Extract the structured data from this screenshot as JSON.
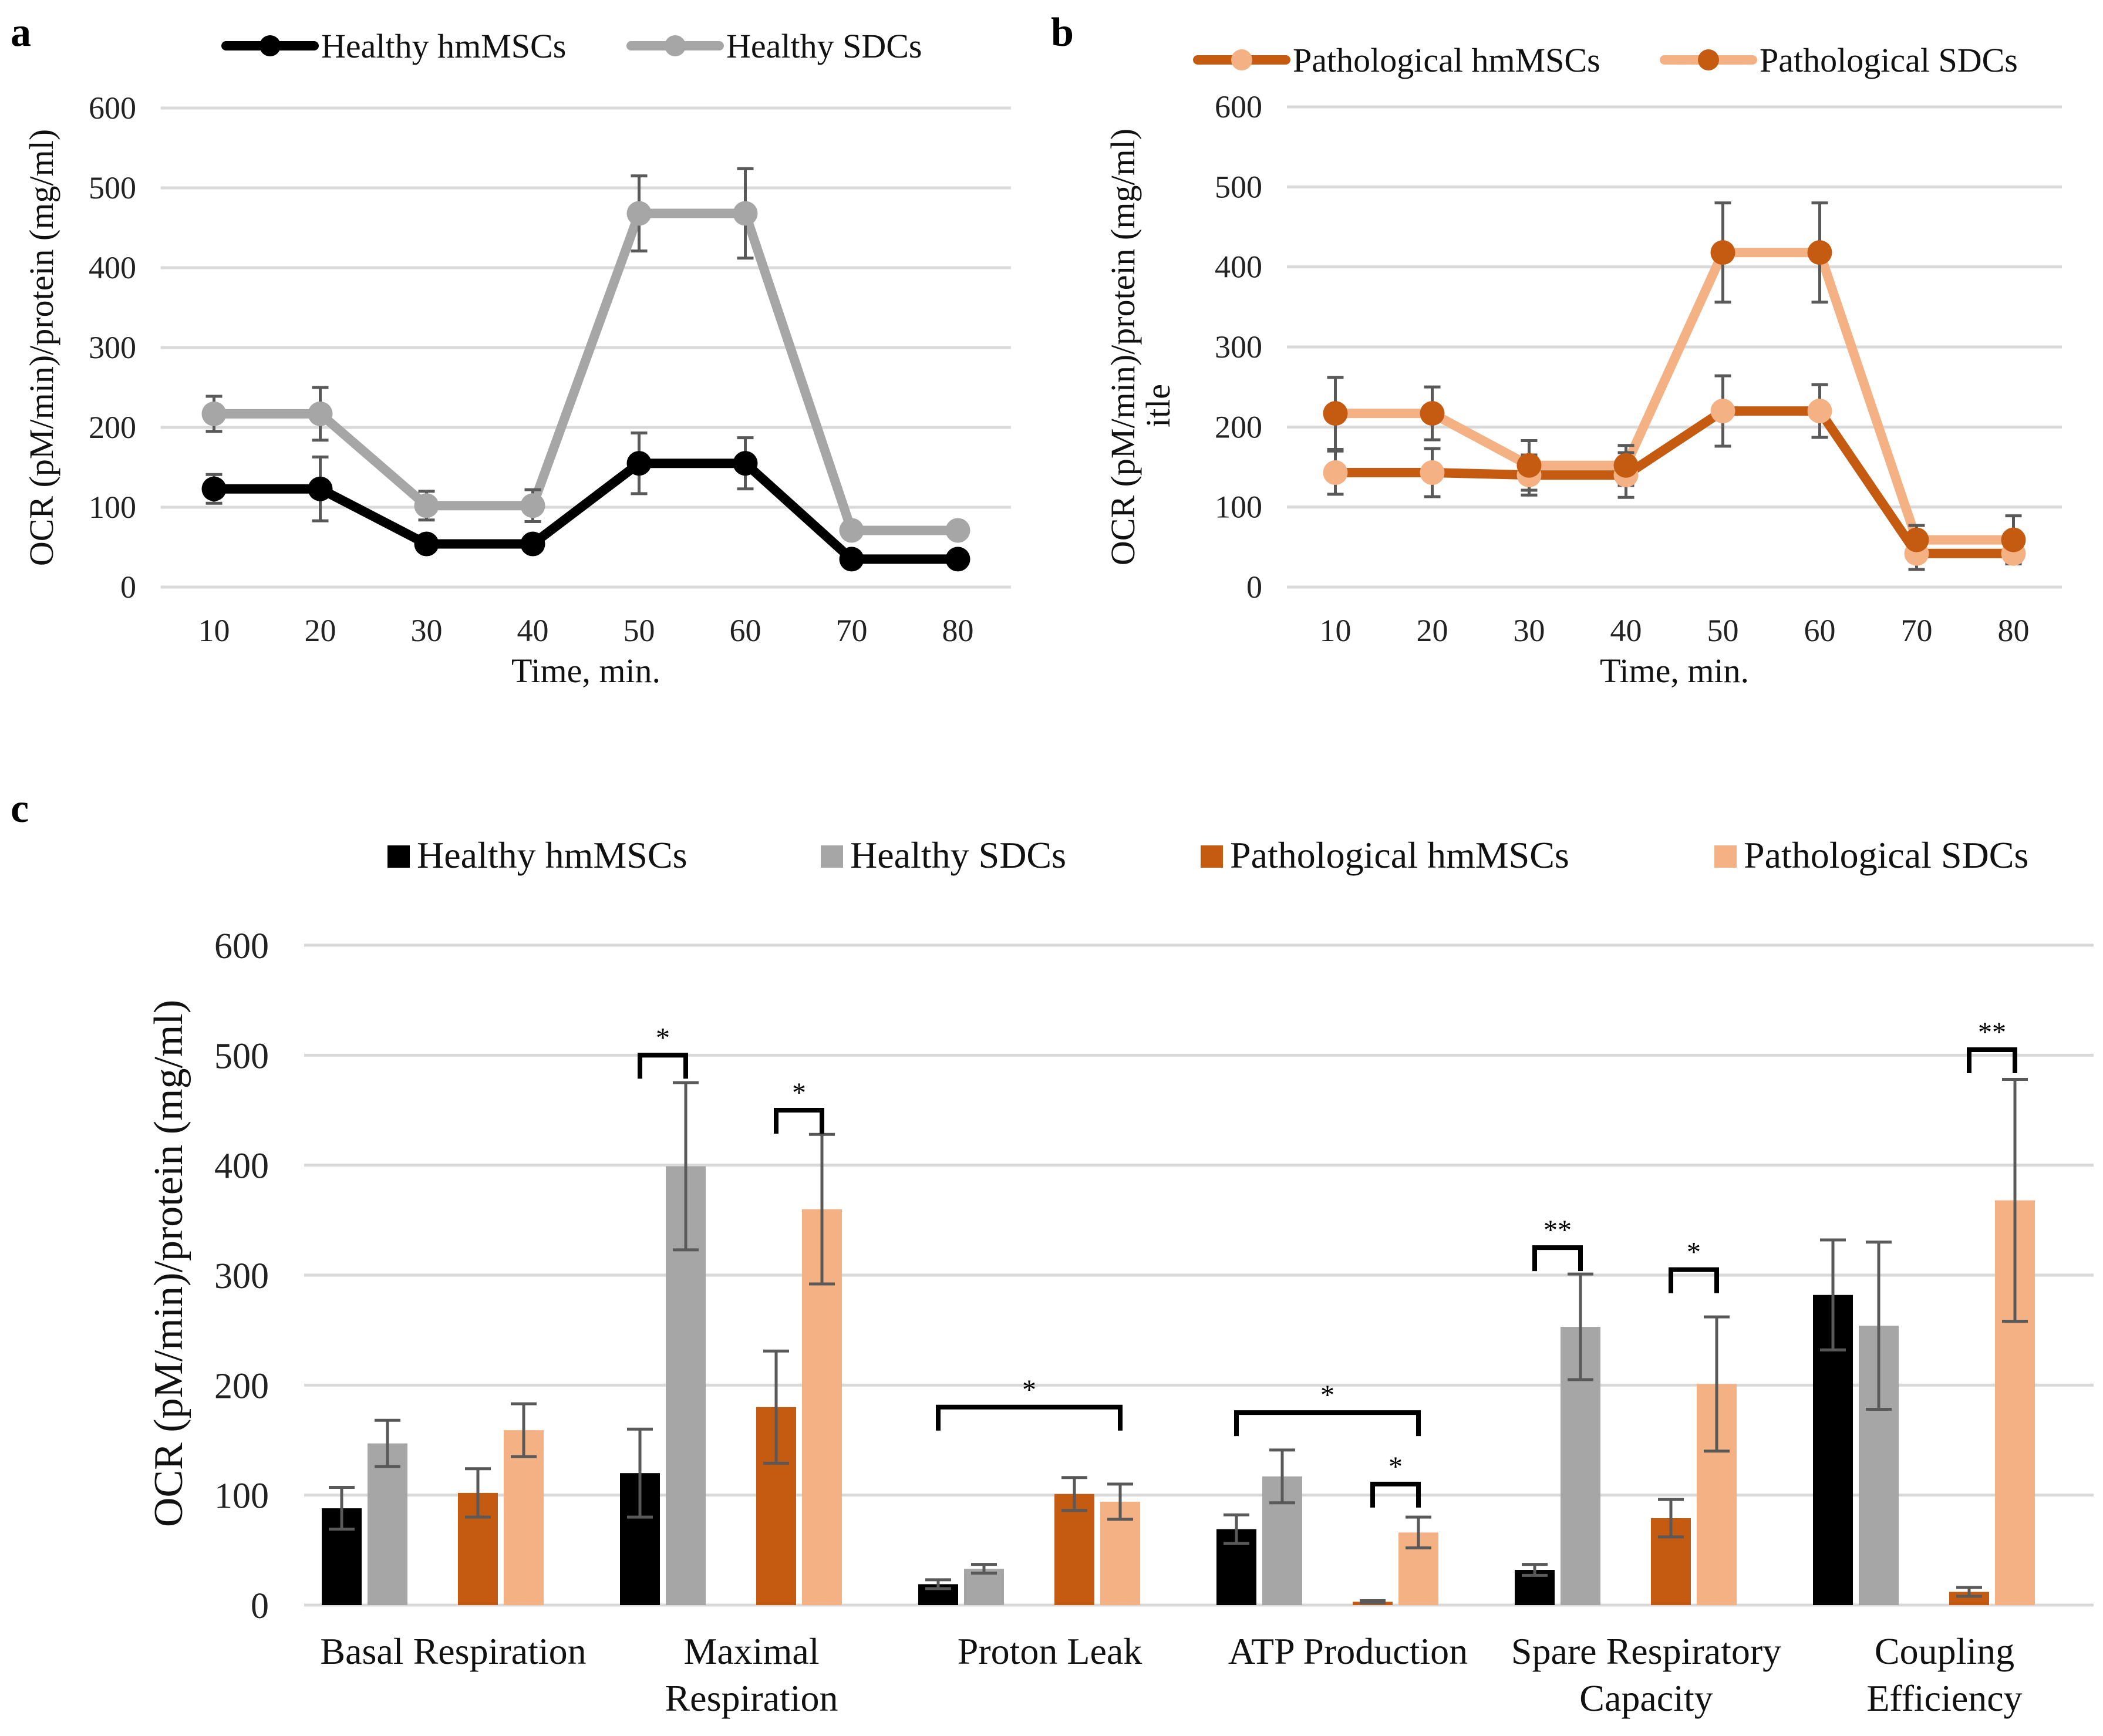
{
  "panels": {
    "a": "a",
    "b": "b",
    "c": "c"
  },
  "colors": {
    "healthy_hmscs": "#000000",
    "healthy_sdcs": "#a6a6a6",
    "pathological_hmscs": "#c55a11",
    "pathological_sdcs": "#f4b183",
    "error_bar": "#595959",
    "grid": "#d9d9d9"
  },
  "chart_data": [
    {
      "type": "line",
      "panel": "a",
      "xlabel": "Time, min.",
      "ylabel": "OCR (pM/min)/protein (mg/ml)",
      "x": [
        10,
        20,
        30,
        40,
        50,
        60,
        70,
        80
      ],
      "ylim": [
        0,
        600
      ],
      "yticks": [
        0,
        100,
        200,
        300,
        400,
        500,
        600
      ],
      "grid": true,
      "legend": "top",
      "series": [
        {
          "name": "Healthy hmMSCs",
          "line_color": "#000000",
          "marker_color": "#000000",
          "values": [
            123,
            123,
            54,
            54,
            155,
            155,
            35,
            35
          ],
          "errors": [
            18,
            40,
            null,
            null,
            38,
            32,
            null,
            null
          ]
        },
        {
          "name": "Healthy SDCs",
          "line_color": "#a6a6a6",
          "marker_color": "#a6a6a6",
          "values": [
            217,
            217,
            102,
            102,
            468,
            468,
            71,
            71
          ],
          "errors": [
            22,
            33,
            18,
            20,
            47,
            56,
            null,
            null
          ]
        }
      ]
    },
    {
      "type": "line",
      "panel": "b",
      "xlabel": "Time, min.",
      "ylabel": "OCR (pM/min)/protein (mg/ml)",
      "ylabel2": "itle",
      "x": [
        10,
        20,
        30,
        40,
        50,
        60,
        70,
        80
      ],
      "ylim": [
        0,
        600
      ],
      "yticks": [
        0,
        100,
        200,
        300,
        400,
        500,
        600
      ],
      "grid": true,
      "legend": "top",
      "series": [
        {
          "name": "Pathological hmMSCs",
          "line_color": "#c55a11",
          "marker_color": "#f4b183",
          "values": [
            143,
            143,
            140,
            140,
            220,
            220,
            42,
            42
          ],
          "errors": [
            27,
            30,
            25,
            28,
            44,
            33,
            20,
            null
          ]
        },
        {
          "name": "Pathological SDCs",
          "line_color": "#f4b183",
          "marker_color": "#c55a11",
          "values": [
            217,
            217,
            152,
            152,
            418,
            418,
            59,
            59
          ],
          "errors": [
            45,
            33,
            31,
            25,
            62,
            62,
            18,
            30
          ]
        }
      ]
    },
    {
      "type": "bar",
      "panel": "c",
      "ylabel": "OCR (pM/min)/protein (mg/ml)",
      "ylim": [
        0,
        600
      ],
      "yticks": [
        0,
        100,
        200,
        300,
        400,
        500,
        600
      ],
      "grid": true,
      "legend": "top",
      "categories": [
        [
          "Basal Respiration"
        ],
        [
          "Maximal",
          "Respiration"
        ],
        [
          "Proton Leak"
        ],
        [
          "ATP Production"
        ],
        [
          "Spare Respiratory",
          "Capacity"
        ],
        [
          "Coupling",
          "Efficiency"
        ]
      ],
      "series": [
        {
          "name": "Healthy hmMSCs",
          "color": "#000000",
          "values": [
            88,
            120,
            19,
            69,
            32,
            282
          ],
          "errors": [
            19,
            40,
            4,
            13,
            5,
            50
          ]
        },
        {
          "name": "Healthy SDCs",
          "color": "#a6a6a6",
          "values": [
            147,
            399,
            33,
            117,
            253,
            254
          ],
          "errors": [
            21,
            76,
            4,
            24,
            48,
            76
          ]
        },
        {
          "name": "Pathological hmMSCs",
          "color": "#c55a11",
          "values": [
            102,
            180,
            101,
            3,
            79,
            12
          ],
          "errors": [
            22,
            51,
            15,
            1,
            17,
            4
          ]
        },
        {
          "name": "Pathological SDCs",
          "color": "#f4b183",
          "values": [
            159,
            360,
            94,
            66,
            201,
            368
          ],
          "errors": [
            24,
            68,
            16,
            14,
            61,
            110
          ]
        }
      ],
      "significance": [
        {
          "category": 1,
          "from": 0,
          "to": 1,
          "label": "*",
          "y": 500
        },
        {
          "category": 1,
          "from": 2,
          "to": 3,
          "label": "*",
          "y": 450
        },
        {
          "category": 2,
          "from": 0,
          "to": 3,
          "label": "*",
          "y": 180
        },
        {
          "category": 3,
          "from": 0,
          "to": 3,
          "label": "*",
          "y": 175
        },
        {
          "category": 3,
          "from": 2,
          "to": 3,
          "label": "*",
          "y": 110
        },
        {
          "category": 4,
          "from": 0,
          "to": 1,
          "label": "**",
          "y": 325
        },
        {
          "category": 4,
          "from": 2,
          "to": 3,
          "label": "*",
          "y": 305
        },
        {
          "category": 5,
          "from": 2,
          "to": 3,
          "label": "**",
          "y": 505
        }
      ]
    }
  ]
}
